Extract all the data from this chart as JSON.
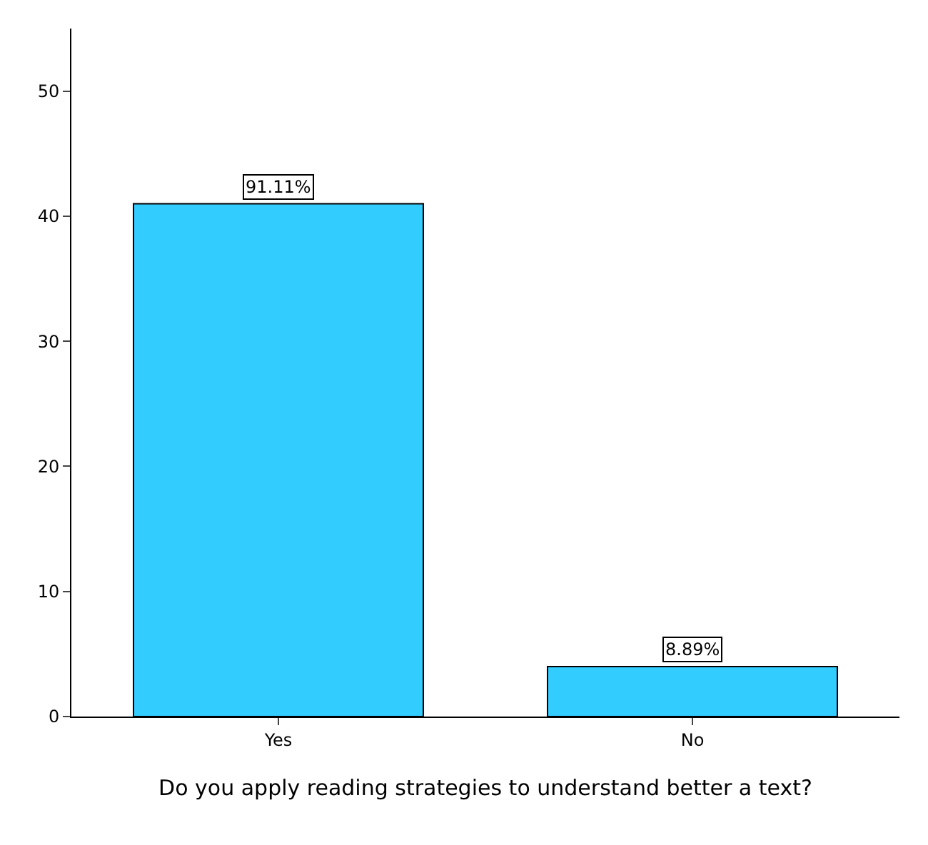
{
  "chart_data": {
    "type": "bar",
    "xlabel": "Do you apply reading strategies to understand better a text?",
    "categories": [
      "Yes",
      "No"
    ],
    "values": [
      41,
      4
    ],
    "annotations": [
      {
        "text": "91.11%",
        "x": "Yes",
        "y": 41
      },
      {
        "text": "8.89%",
        "x": "No",
        "y": 4
      }
    ],
    "color": "#33ccff",
    "ylim": [
      0,
      55
    ],
    "yticks": [
      0,
      10,
      20,
      30,
      40,
      50
    ],
    "grid": false,
    "legend": false
  }
}
